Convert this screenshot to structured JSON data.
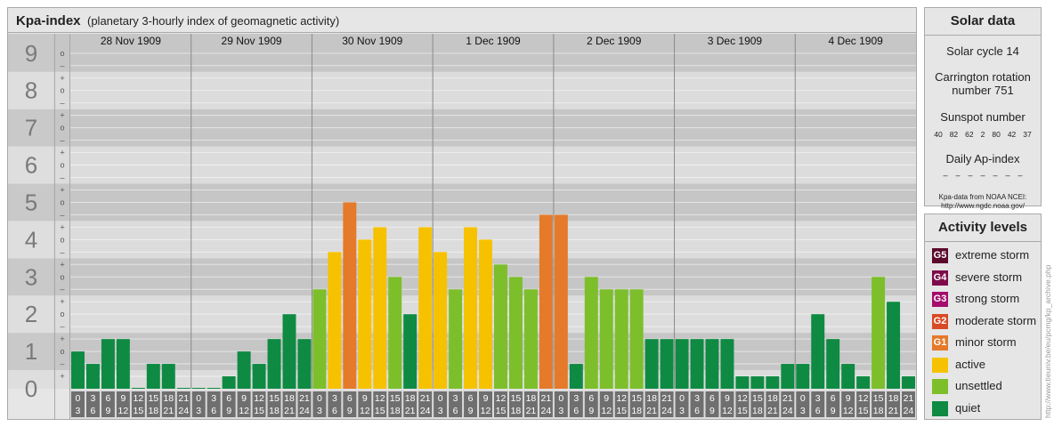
{
  "header": {
    "title": "Kpa-index",
    "subtitle": "(planetary 3-hourly index of geomagnetic activity)"
  },
  "chart_data": {
    "type": "bar",
    "title": "Kpa-index",
    "subtitle": "(planetary 3-hourly index of geomagnetic activity)",
    "ylim": [
      0,
      9.33
    ],
    "y_ticks": [
      "0",
      "1",
      "2",
      "3",
      "4",
      "5",
      "6",
      "7",
      "8",
      "9"
    ],
    "y_minor_labels": [
      "+",
      "–",
      "o"
    ],
    "days": [
      "28 Nov 1909",
      "29 Nov 1909",
      "30 Nov 1909",
      "1 Dec 1909",
      "2 Dec 1909",
      "3 Dec 1909",
      "4 Dec 1909"
    ],
    "interval_starts": [
      "0",
      "3",
      "6",
      "9",
      "12",
      "15",
      "18",
      "21"
    ],
    "interval_ends": [
      "3",
      "6",
      "9",
      "12",
      "15",
      "18",
      "21",
      "24"
    ],
    "values": [
      1.0,
      0.667,
      1.333,
      1.333,
      0.0,
      0.667,
      0.667,
      0.0,
      0.0,
      0.0,
      0.333,
      1.0,
      0.667,
      1.333,
      2.0,
      1.333,
      2.667,
      3.667,
      5.0,
      4.0,
      4.333,
      3.0,
      2.0,
      4.333,
      3.667,
      2.667,
      4.333,
      4.0,
      3.333,
      3.0,
      2.667,
      4.667,
      4.667,
      0.667,
      3.0,
      2.667,
      2.667,
      2.667,
      1.333,
      1.333,
      1.333,
      1.333,
      1.333,
      1.333,
      0.333,
      0.333,
      0.333,
      0.667,
      0.667,
      2.0,
      1.333,
      0.667,
      0.333,
      3.0,
      2.333,
      0.333
    ],
    "grid": true,
    "legend_position": "right"
  },
  "solar": {
    "title": "Solar data",
    "cycle": "Solar cycle 14",
    "carrington_line1": "Carrington rotation",
    "carrington_line2": "number 751",
    "sunspot_title": "Sunspot number",
    "sunspots": [
      "40",
      "82",
      "62",
      "2",
      "80",
      "42",
      "37"
    ],
    "ap_title": "Daily Ap-index",
    "ap_values": [
      "–",
      "–",
      "–",
      "–",
      "–",
      "–",
      "–"
    ],
    "source_line1": "Kpa-data from NOAA NCEI:",
    "source_line2": "http://www.ngdc.noaa.gov/"
  },
  "activity": {
    "title": "Activity levels",
    "levels": [
      {
        "code": "G5",
        "label": "extreme storm",
        "color": "#5c0a2c"
      },
      {
        "code": "G4",
        "label": "severe storm",
        "color": "#7d0b4a"
      },
      {
        "code": "G3",
        "label": "strong storm",
        "color": "#a40d6b"
      },
      {
        "code": "G2",
        "label": "moderate storm",
        "color": "#d84a25"
      },
      {
        "code": "G1",
        "label": "minor storm",
        "color": "#e47a2a"
      },
      {
        "code": "",
        "label": "active",
        "color": "#f6c200"
      },
      {
        "code": "",
        "label": "unsettled",
        "color": "#7cbf2a"
      },
      {
        "code": "",
        "label": "quiet",
        "color": "#0f8a43"
      }
    ]
  },
  "credit": "http://www.tieuniv.be/eu/pcmg/kp_archive.php"
}
